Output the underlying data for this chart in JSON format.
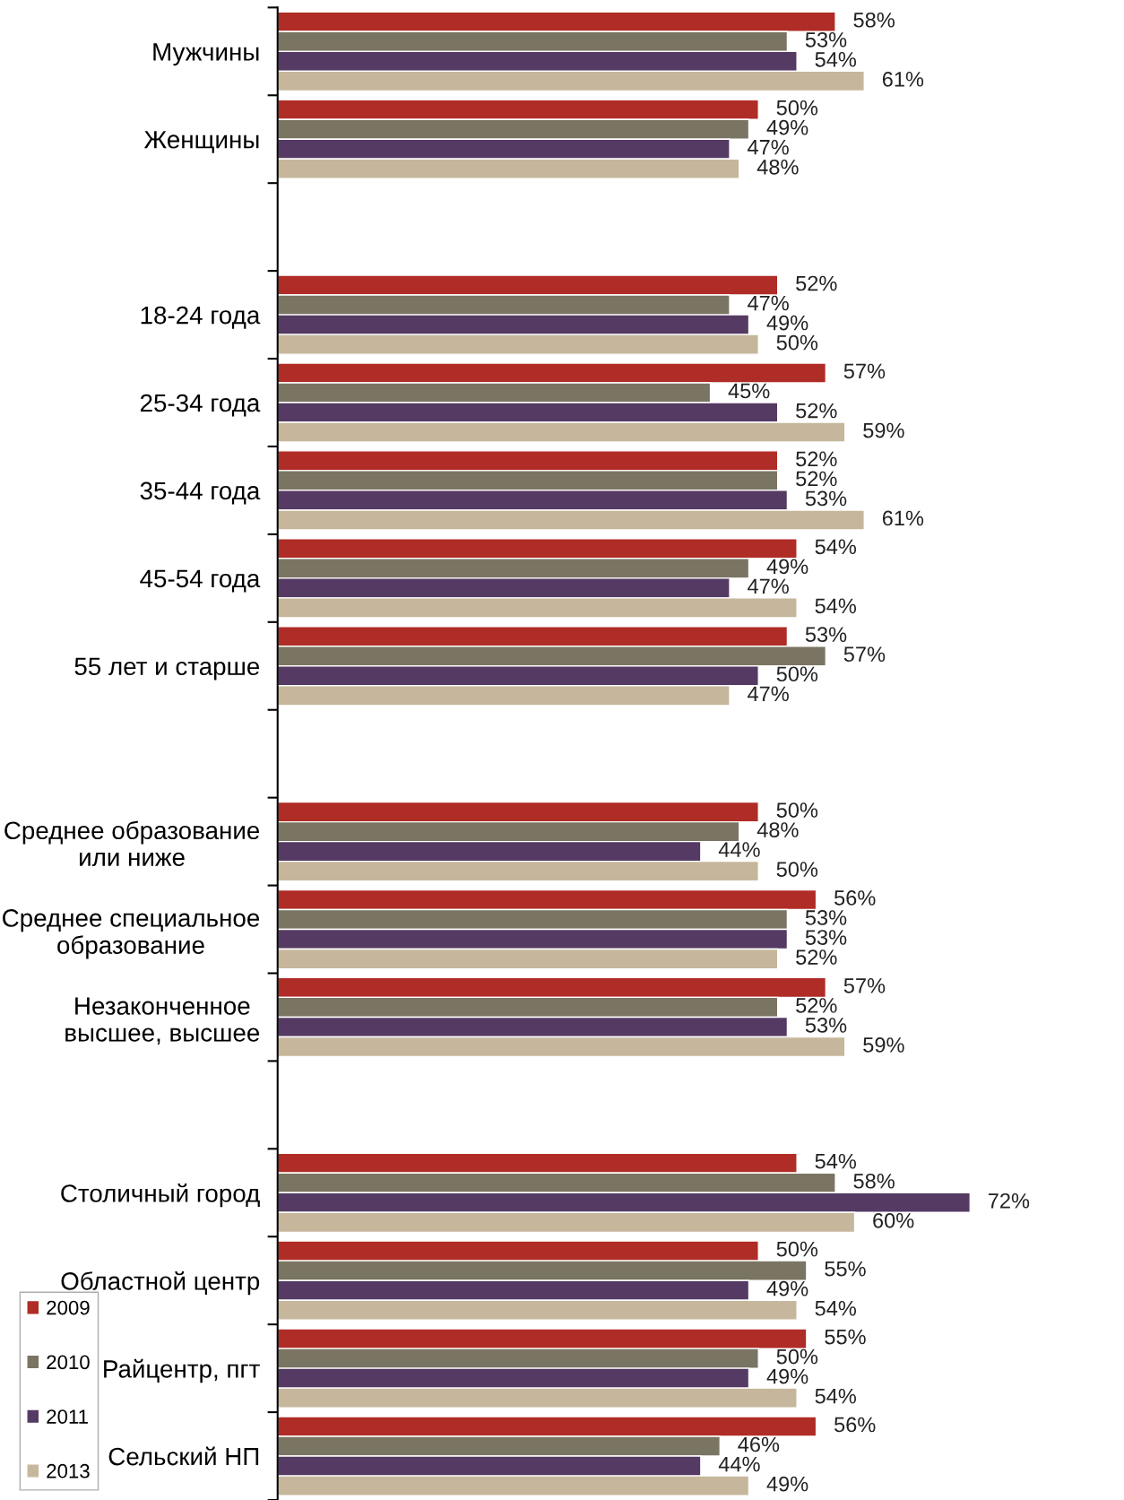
{
  "chart_data": {
    "type": "bar",
    "orientation": "horizontal",
    "categories": [
      "Мужчины",
      "Женщины",
      null,
      "18-24 года",
      "25-34 года",
      "35-44 года",
      "45-54 года",
      "55 лет и старше",
      null,
      "Среднее образование\nили ниже",
      "Среднее специальное\nобразование",
      "Незаконченное\nвысшее, высшее",
      null,
      "Столичный город",
      "Областной центр",
      "Райцентр, пгт",
      "Сельский НП"
    ],
    "series": [
      {
        "name": "2009",
        "color": "#b02c26",
        "values": [
          58,
          50,
          null,
          52,
          57,
          52,
          54,
          53,
          null,
          50,
          56,
          57,
          null,
          54,
          50,
          55,
          56
        ],
        "value_labels": [
          "58%",
          "50%",
          null,
          "52%",
          "57%",
          "52%",
          "54%",
          "53%",
          null,
          "50%",
          "56%",
          "57%",
          null,
          "54%",
          "50%",
          "55%",
          "56%"
        ]
      },
      {
        "name": "2010",
        "color": "#7a7462",
        "values": [
          53,
          49,
          null,
          47,
          45,
          52,
          49,
          57,
          null,
          48,
          53,
          52,
          null,
          58,
          55,
          50,
          46
        ],
        "value_labels": [
          "53%",
          "49%",
          null,
          "47%",
          "45%",
          "52%",
          "49%",
          "57%",
          null,
          "48%",
          "53%",
          "52%",
          null,
          "58%",
          "55%",
          "50%",
          "46%"
        ]
      },
      {
        "name": "2011",
        "color": "#553a63",
        "values": [
          54,
          47,
          null,
          49,
          52,
          53,
          47,
          50,
          null,
          44,
          53,
          53,
          null,
          72,
          49,
          49,
          44
        ],
        "value_labels": [
          "54%",
          "47%",
          null,
          "49%",
          "52%",
          "53%",
          "47%",
          "50%",
          null,
          "44%",
          "53%",
          "53%",
          null,
          "72%",
          "49%",
          "49%",
          "44%"
        ]
      },
      {
        "name": "2013",
        "color": "#c6b79c",
        "values": [
          61,
          48,
          null,
          50,
          59,
          61,
          54,
          47,
          null,
          50,
          52,
          59,
          null,
          60,
          54,
          54,
          49
        ],
        "value_labels": [
          "61%",
          "48%",
          null,
          "50%",
          "59%",
          "61%",
          "54%",
          "47%",
          null,
          "50%",
          "52%",
          "59%",
          null,
          "60%",
          "54%",
          "54%",
          "49%"
        ]
      }
    ],
    "legend": "bottom left",
    "grid": false
  }
}
